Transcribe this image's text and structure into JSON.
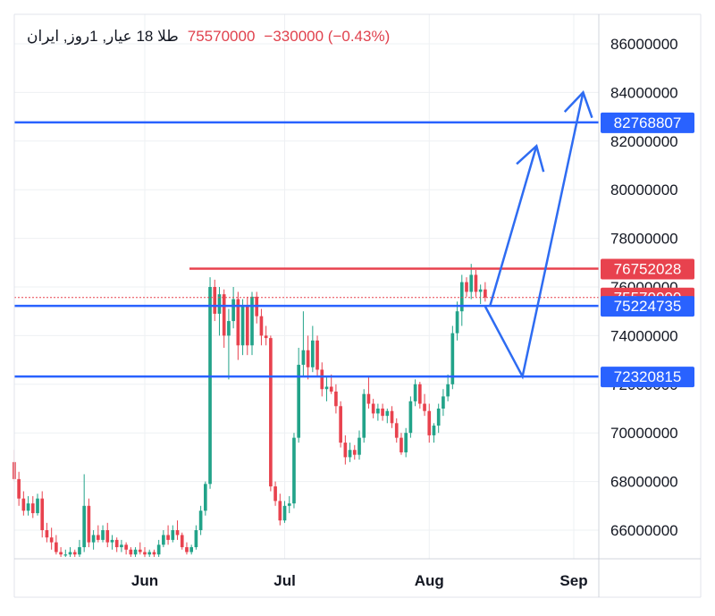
{
  "header": {
    "symbol": "طلا 18 عیار, 1روز, ایران",
    "last_price": "75570000",
    "change": "−330000 (−0.43%)"
  },
  "colors": {
    "up": "#22a389",
    "down": "#e8424e",
    "support": "#2962ff",
    "resistance": "#e8424e",
    "projection": "#2e6cf2",
    "grid": "#eef0f3",
    "axis_text": "#131722"
  },
  "chart_data": {
    "type": "candlestick",
    "title": "طلا 18 عیار, 1روز, ایران",
    "ylim": [
      64900000,
      87300000
    ],
    "y_ticks": [
      66000000,
      68000000,
      70000000,
      72000000,
      74000000,
      76000000,
      78000000,
      80000000,
      82000000,
      84000000,
      86000000
    ],
    "y_tick_labels": [
      "66000000",
      "68000000",
      "70000000",
      "72000000",
      "74000000",
      "76000000",
      "78000000",
      "80000000",
      "82000000",
      "84000000",
      "86000000"
    ],
    "x_ticks": [
      "Jun",
      "Jul",
      "Aug",
      "Sep"
    ],
    "grid": true,
    "price_lines": [
      {
        "name": "resistance",
        "value": 82768807,
        "label": "82768807",
        "color": "#2962ff"
      },
      {
        "name": "top",
        "value": 76752028,
        "label": "76752028",
        "color": "#e8424e"
      },
      {
        "name": "last",
        "value": 75570000,
        "label": "75570000",
        "color": "#e8424e"
      },
      {
        "name": "support-1",
        "value": 75224735,
        "label": "75224735",
        "color": "#2962ff"
      },
      {
        "name": "support-2",
        "value": 72320815,
        "label": "72320815",
        "color": "#2962ff"
      }
    ],
    "projection_paths": [
      {
        "name": "path-up",
        "points": [
          [
            "Aug 14",
            75200000
          ],
          [
            "Aug 24",
            81800000
          ]
        ]
      },
      {
        "name": "path-dip",
        "points": [
          [
            "Aug 13",
            75200000
          ],
          [
            "Aug 21",
            72320815
          ],
          [
            "Sep 3",
            84000000
          ]
        ]
      }
    ],
    "candles": [
      {
        "d": "May 4",
        "o": 68800000,
        "h": 69300000,
        "l": 68000000,
        "c": 68100000
      },
      {
        "d": "May 5",
        "o": 68100000,
        "h": 68400000,
        "l": 67000000,
        "c": 67300000
      },
      {
        "d": "May 6",
        "o": 67300000,
        "h": 67600000,
        "l": 66600000,
        "c": 66800000
      },
      {
        "d": "May 7",
        "o": 66800000,
        "h": 67400000,
        "l": 66600000,
        "c": 67100000
      },
      {
        "d": "May 8",
        "o": 67100000,
        "h": 67400000,
        "l": 66500000,
        "c": 66700000
      },
      {
        "d": "May 9",
        "o": 66700000,
        "h": 67500000,
        "l": 66600000,
        "c": 67300000
      },
      {
        "d": "May 10",
        "o": 67300000,
        "h": 67600000,
        "l": 65700000,
        "c": 66000000
      },
      {
        "d": "May 11",
        "o": 66000000,
        "h": 66300000,
        "l": 65500000,
        "c": 65700000
      },
      {
        "d": "May 12",
        "o": 65700000,
        "h": 66100000,
        "l": 65200000,
        "c": 65500000
      },
      {
        "d": "May 13",
        "o": 65500000,
        "h": 65800000,
        "l": 65000000,
        "c": 65100000
      },
      {
        "d": "May 14",
        "o": 65100000,
        "h": 65300000,
        "l": 64900000,
        "c": 65000000
      },
      {
        "d": "May 15",
        "o": 65000000,
        "h": 65200000,
        "l": 64900000,
        "c": 65000000
      },
      {
        "d": "May 16",
        "o": 65000000,
        "h": 65300000,
        "l": 64900000,
        "c": 65100000
      },
      {
        "d": "May 17",
        "o": 65100000,
        "h": 65200000,
        "l": 64900000,
        "c": 65000000
      },
      {
        "d": "May 18",
        "o": 65000000,
        "h": 65600000,
        "l": 64900000,
        "c": 65300000
      },
      {
        "d": "May 19",
        "o": 65300000,
        "h": 68300000,
        "l": 65100000,
        "c": 67000000
      },
      {
        "d": "May 20",
        "o": 67000000,
        "h": 67300000,
        "l": 65300000,
        "c": 65500000
      },
      {
        "d": "May 21",
        "o": 65500000,
        "h": 66000000,
        "l": 65200000,
        "c": 65800000
      },
      {
        "d": "May 22",
        "o": 65800000,
        "h": 66200000,
        "l": 65500000,
        "c": 65600000
      },
      {
        "d": "May 23",
        "o": 65600000,
        "h": 66200000,
        "l": 65500000,
        "c": 66000000
      },
      {
        "d": "May 24",
        "o": 66000000,
        "h": 66300000,
        "l": 65300000,
        "c": 65500000
      },
      {
        "d": "May 25",
        "o": 65500000,
        "h": 65800000,
        "l": 65200000,
        "c": 65600000
      },
      {
        "d": "May 26",
        "o": 65600000,
        "h": 65700000,
        "l": 65100000,
        "c": 65300000
      },
      {
        "d": "May 27",
        "o": 65300000,
        "h": 65600000,
        "l": 65100000,
        "c": 65400000
      },
      {
        "d": "May 28",
        "o": 65400000,
        "h": 65500000,
        "l": 65000000,
        "c": 65200000
      },
      {
        "d": "May 29",
        "o": 65200000,
        "h": 65300000,
        "l": 64900000,
        "c": 65000000
      },
      {
        "d": "May 30",
        "o": 65000000,
        "h": 65300000,
        "l": 64900000,
        "c": 65200000
      },
      {
        "d": "May 31",
        "o": 65200000,
        "h": 65500000,
        "l": 65000000,
        "c": 65100000
      },
      {
        "d": "Jun 1",
        "o": 65100000,
        "h": 65300000,
        "l": 64900000,
        "c": 65000000
      },
      {
        "d": "Jun 2",
        "o": 65000000,
        "h": 65200000,
        "l": 64900000,
        "c": 65100000
      },
      {
        "d": "Jun 3",
        "o": 65100000,
        "h": 65200000,
        "l": 64900000,
        "c": 65000000
      },
      {
        "d": "Jun 4",
        "o": 65000000,
        "h": 65600000,
        "l": 64900000,
        "c": 65400000
      },
      {
        "d": "Jun 5",
        "o": 65400000,
        "h": 66000000,
        "l": 65300000,
        "c": 65800000
      },
      {
        "d": "Jun 6",
        "o": 65800000,
        "h": 66200000,
        "l": 65400000,
        "c": 65600000
      },
      {
        "d": "Jun 7",
        "o": 65600000,
        "h": 66200000,
        "l": 65500000,
        "c": 66000000
      },
      {
        "d": "Jun 8",
        "o": 66000000,
        "h": 66400000,
        "l": 65600000,
        "c": 65800000
      },
      {
        "d": "Jun 9",
        "o": 65800000,
        "h": 65900000,
        "l": 65200000,
        "c": 65300000
      },
      {
        "d": "Jun 10",
        "o": 65300000,
        "h": 65500000,
        "l": 65000000,
        "c": 65100000
      },
      {
        "d": "Jun 11",
        "o": 65100000,
        "h": 65400000,
        "l": 65000000,
        "c": 65300000
      },
      {
        "d": "Jun 12",
        "o": 65300000,
        "h": 66200000,
        "l": 65200000,
        "c": 66000000
      },
      {
        "d": "Jun 13",
        "o": 66000000,
        "h": 67000000,
        "l": 65800000,
        "c": 66800000
      },
      {
        "d": "Jun 14",
        "o": 66800000,
        "h": 68000000,
        "l": 66600000,
        "c": 67900000
      },
      {
        "d": "Jun 15",
        "o": 67900000,
        "h": 76400000,
        "l": 67700000,
        "c": 76000000
      },
      {
        "d": "Jun 16",
        "o": 76000000,
        "h": 76300000,
        "l": 74600000,
        "c": 74900000
      },
      {
        "d": "Jun 17",
        "o": 74900000,
        "h": 76000000,
        "l": 74000000,
        "c": 75700000
      },
      {
        "d": "Jun 18",
        "o": 75700000,
        "h": 75900000,
        "l": 73500000,
        "c": 74000000
      },
      {
        "d": "Jun 19",
        "o": 74000000,
        "h": 75100000,
        "l": 72200000,
        "c": 74600000
      },
      {
        "d": "Jun 20",
        "o": 74600000,
        "h": 76000000,
        "l": 74300000,
        "c": 75500000
      },
      {
        "d": "Jun 21",
        "o": 75500000,
        "h": 75800000,
        "l": 73000000,
        "c": 73600000
      },
      {
        "d": "Jun 22",
        "o": 73600000,
        "h": 75500000,
        "l": 73200000,
        "c": 75200000
      },
      {
        "d": "Jun 23",
        "o": 75200000,
        "h": 75600000,
        "l": 73200000,
        "c": 73600000
      },
      {
        "d": "Jun 24",
        "o": 73600000,
        "h": 75800000,
        "l": 73200000,
        "c": 75600000
      },
      {
        "d": "Jun 25",
        "o": 75600000,
        "h": 75800000,
        "l": 74500000,
        "c": 74800000
      },
      {
        "d": "Jun 26",
        "o": 74800000,
        "h": 75100000,
        "l": 73600000,
        "c": 74000000
      },
      {
        "d": "Jun 27",
        "o": 74000000,
        "h": 74400000,
        "l": 73600000,
        "c": 73900000
      },
      {
        "d": "Jun 28",
        "o": 73900000,
        "h": 74000000,
        "l": 67600000,
        "c": 67800000
      },
      {
        "d": "Jun 29",
        "o": 67800000,
        "h": 68000000,
        "l": 67000000,
        "c": 67200000
      },
      {
        "d": "Jun 30",
        "o": 67200000,
        "h": 67500000,
        "l": 66200000,
        "c": 66400000
      },
      {
        "d": "Jul 1",
        "o": 66400000,
        "h": 67200000,
        "l": 66300000,
        "c": 67000000
      },
      {
        "d": "Jul 2",
        "o": 67000000,
        "h": 67400000,
        "l": 66700000,
        "c": 67100000
      },
      {
        "d": "Jul 3",
        "o": 67100000,
        "h": 70000000,
        "l": 66900000,
        "c": 69800000
      },
      {
        "d": "Jul 4",
        "o": 69800000,
        "h": 73500000,
        "l": 69600000,
        "c": 72800000
      },
      {
        "d": "Jul 5",
        "o": 72800000,
        "h": 75000000,
        "l": 72300000,
        "c": 73400000
      },
      {
        "d": "Jul 6",
        "o": 73400000,
        "h": 74000000,
        "l": 72200000,
        "c": 72700000
      },
      {
        "d": "Jul 7",
        "o": 72700000,
        "h": 74400000,
        "l": 72500000,
        "c": 73800000
      },
      {
        "d": "Jul 8",
        "o": 73800000,
        "h": 74000000,
        "l": 72300000,
        "c": 72600000
      },
      {
        "d": "Jul 9",
        "o": 72600000,
        "h": 72900000,
        "l": 71500000,
        "c": 71800000
      },
      {
        "d": "Jul 10",
        "o": 71800000,
        "h": 72300000,
        "l": 71300000,
        "c": 71900000
      },
      {
        "d": "Jul 11",
        "o": 71900000,
        "h": 72400000,
        "l": 71600000,
        "c": 71700000
      },
      {
        "d": "Jul 12",
        "o": 71700000,
        "h": 72000000,
        "l": 70800000,
        "c": 71100000
      },
      {
        "d": "Jul 13",
        "o": 71100000,
        "h": 71300000,
        "l": 69400000,
        "c": 69600000
      },
      {
        "d": "Jul 14",
        "o": 69600000,
        "h": 69900000,
        "l": 68700000,
        "c": 69000000
      },
      {
        "d": "Jul 15",
        "o": 69000000,
        "h": 69600000,
        "l": 68800000,
        "c": 69300000
      },
      {
        "d": "Jul 16",
        "o": 69300000,
        "h": 69500000,
        "l": 68900000,
        "c": 69100000
      },
      {
        "d": "Jul 17",
        "o": 69100000,
        "h": 70100000,
        "l": 68900000,
        "c": 69800000
      },
      {
        "d": "Jul 18",
        "o": 69800000,
        "h": 71800000,
        "l": 69600000,
        "c": 71600000
      },
      {
        "d": "Jul 19",
        "o": 71600000,
        "h": 72300000,
        "l": 71000000,
        "c": 71200000
      },
      {
        "d": "Jul 20",
        "o": 71200000,
        "h": 71400000,
        "l": 70600000,
        "c": 70800000
      },
      {
        "d": "Jul 21",
        "o": 70800000,
        "h": 71200000,
        "l": 70500000,
        "c": 71000000
      },
      {
        "d": "Jul 22",
        "o": 71000000,
        "h": 71200000,
        "l": 70500000,
        "c": 70700000
      },
      {
        "d": "Jul 23",
        "o": 70700000,
        "h": 71000000,
        "l": 70400000,
        "c": 70900000
      },
      {
        "d": "Jul 24",
        "o": 70900000,
        "h": 71100000,
        "l": 70200000,
        "c": 70400000
      },
      {
        "d": "Jul 25",
        "o": 70400000,
        "h": 70600000,
        "l": 69600000,
        "c": 69800000
      },
      {
        "d": "Jul 26",
        "o": 69800000,
        "h": 70000000,
        "l": 69100000,
        "c": 69200000
      },
      {
        "d": "Jul 27",
        "o": 69200000,
        "h": 70200000,
        "l": 69000000,
        "c": 70000000
      },
      {
        "d": "Jul 28",
        "o": 70000000,
        "h": 71500000,
        "l": 69800000,
        "c": 71300000
      },
      {
        "d": "Jul 29",
        "o": 71300000,
        "h": 72200000,
        "l": 71100000,
        "c": 72000000
      },
      {
        "d": "Jul 30",
        "o": 72000000,
        "h": 72100000,
        "l": 71000000,
        "c": 71200000
      },
      {
        "d": "Jul 31",
        "o": 71200000,
        "h": 71600000,
        "l": 70700000,
        "c": 70900000
      },
      {
        "d": "Aug 1",
        "o": 70900000,
        "h": 71200000,
        "l": 69600000,
        "c": 69900000
      },
      {
        "d": "Aug 2",
        "o": 69900000,
        "h": 70400000,
        "l": 69600000,
        "c": 70300000
      },
      {
        "d": "Aug 3",
        "o": 70300000,
        "h": 71200000,
        "l": 70000000,
        "c": 71000000
      },
      {
        "d": "Aug 4",
        "o": 71000000,
        "h": 71800000,
        "l": 70700000,
        "c": 71500000
      },
      {
        "d": "Aug 5",
        "o": 71500000,
        "h": 72400000,
        "l": 71300000,
        "c": 72000000
      },
      {
        "d": "Aug 6",
        "o": 72000000,
        "h": 74400000,
        "l": 71800000,
        "c": 74100000
      },
      {
        "d": "Aug 7",
        "o": 74100000,
        "h": 75400000,
        "l": 73800000,
        "c": 75000000
      },
      {
        "d": "Aug 8",
        "o": 75000000,
        "h": 76500000,
        "l": 74400000,
        "c": 76200000
      },
      {
        "d": "Aug 9",
        "o": 76200000,
        "h": 76400000,
        "l": 75600000,
        "c": 75800000
      },
      {
        "d": "Aug 10",
        "o": 75800000,
        "h": 76950000,
        "l": 75500000,
        "c": 76500000
      },
      {
        "d": "Aug 11",
        "o": 76500000,
        "h": 76700000,
        "l": 75600000,
        "c": 75800000
      },
      {
        "d": "Aug 12",
        "o": 75800000,
        "h": 76100000,
        "l": 75300000,
        "c": 75900000
      },
      {
        "d": "Aug 13",
        "o": 75900000,
        "h": 76200000,
        "l": 75400000,
        "c": 75570000
      }
    ]
  }
}
